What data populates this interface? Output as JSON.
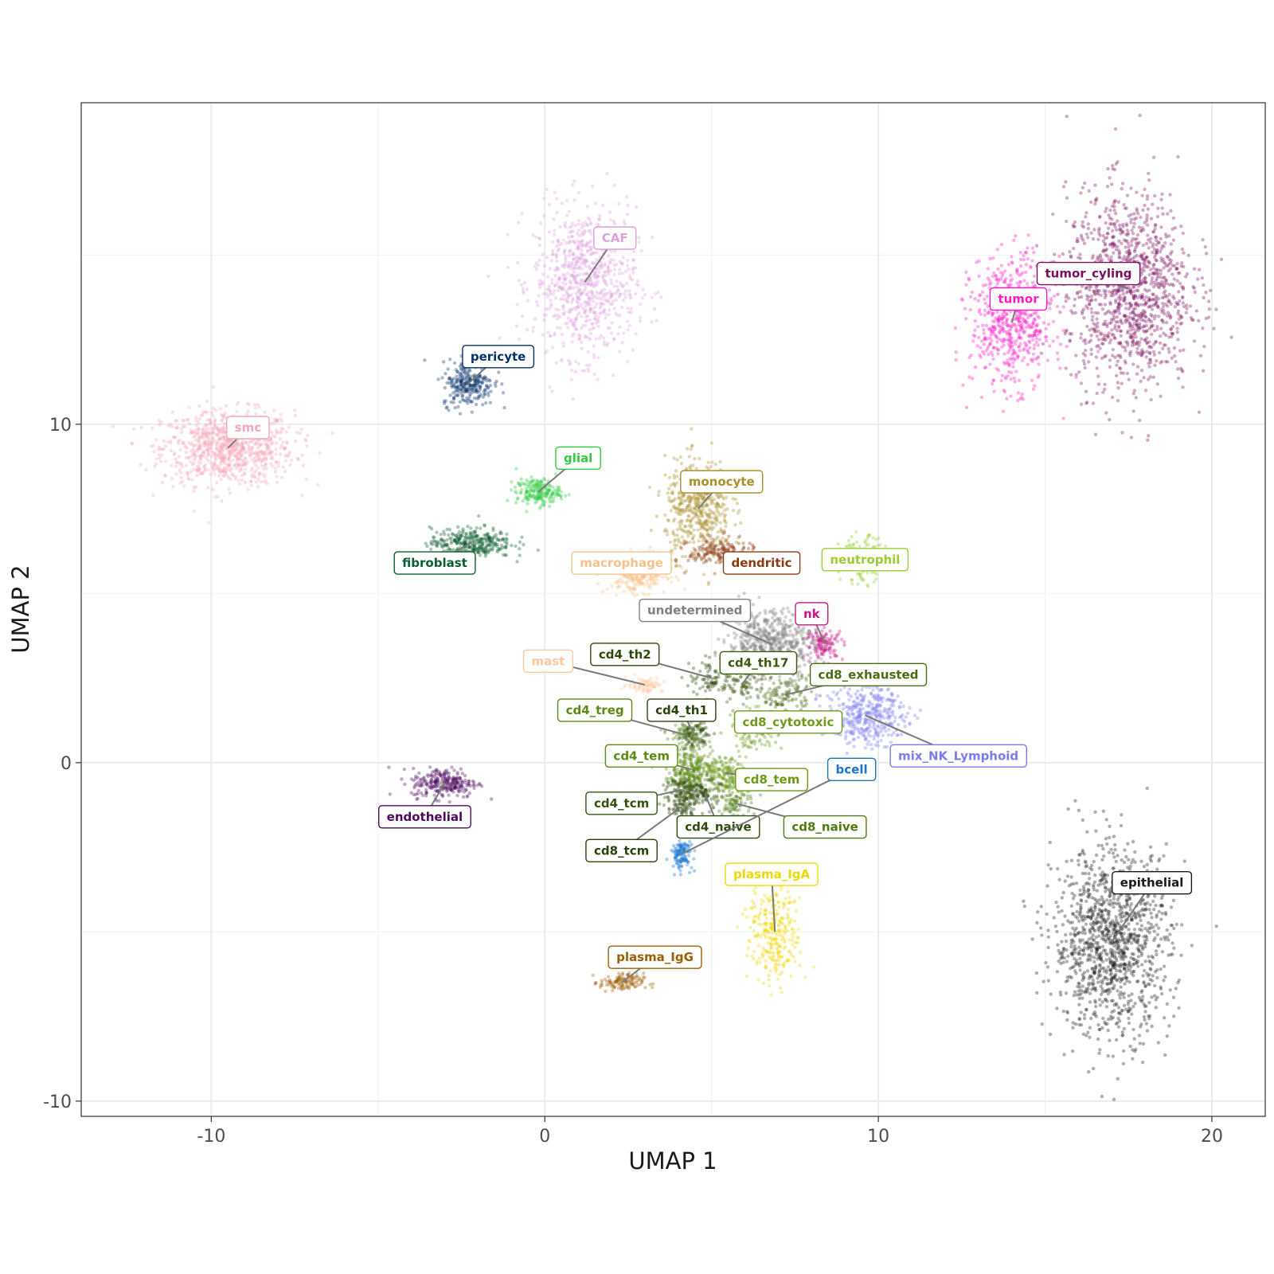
{
  "chart_data": {
    "type": "scatter",
    "title": "",
    "xlabel": "UMAP 1",
    "ylabel": "UMAP 2",
    "xlim": [
      -13.9,
      21.6
    ],
    "ylim": [
      -10.45,
      19.5
    ],
    "x_ticks": [
      -10,
      0,
      10,
      20
    ],
    "y_ticks": [
      -10,
      0,
      10
    ],
    "x_tick_labels": [
      "-10",
      "0",
      "10",
      "20"
    ],
    "y_tick_labels": [
      "-10",
      "0",
      "10"
    ],
    "grid": true,
    "legend": "none",
    "clusters": [
      {
        "label": "smc",
        "color": "#F4A7BB",
        "center": [
          -9.5,
          9.3
        ],
        "spread": [
          1.8,
          1.0
        ],
        "n": 900,
        "label_pos": [
          -8.9,
          9.9
        ]
      },
      {
        "label": "CAF",
        "color": "#DDA0DD",
        "center": [
          1.2,
          14.2
        ],
        "spread": [
          1.4,
          2.0
        ],
        "n": 800,
        "label_pos": [
          2.1,
          15.5
        ]
      },
      {
        "label": "pericyte",
        "color": "#08306B",
        "center": [
          -2.3,
          11.2
        ],
        "spread": [
          0.7,
          0.6
        ],
        "n": 260,
        "label_pos": [
          -1.4,
          12.0
        ]
      },
      {
        "label": "glial",
        "color": "#2ECC40",
        "center": [
          -0.2,
          8.0
        ],
        "spread": [
          0.6,
          0.35
        ],
        "n": 200,
        "label_pos": [
          1.0,
          9.0
        ]
      },
      {
        "label": "fibroblast",
        "color": "#0B5D2E",
        "center": [
          -2.2,
          6.5
        ],
        "spread": [
          1.1,
          0.4
        ],
        "n": 320,
        "label_pos": [
          -3.3,
          5.9
        ]
      },
      {
        "label": "monocyte",
        "color": "#A8902A",
        "center": [
          4.6,
          7.5
        ],
        "spread": [
          0.9,
          1.3
        ],
        "n": 500,
        "label_pos": [
          5.3,
          8.3
        ]
      },
      {
        "label": "macrophage",
        "color": "#F5C28E",
        "center": [
          2.8,
          5.6
        ],
        "spread": [
          0.8,
          0.5
        ],
        "n": 300,
        "label_pos": [
          2.3,
          5.9
        ]
      },
      {
        "label": "dendritic",
        "color": "#8B3A0F",
        "center": [
          5.3,
          6.2
        ],
        "spread": [
          0.9,
          0.4
        ],
        "n": 200,
        "label_pos": [
          6.5,
          5.9
        ]
      },
      {
        "label": "neutrophil",
        "color": "#9ACD32",
        "center": [
          9.5,
          6.0
        ],
        "spread": [
          0.6,
          0.6
        ],
        "n": 150,
        "label_pos": [
          9.6,
          6.0
        ]
      },
      {
        "label": "undetermined",
        "color": "#808080",
        "center": [
          6.8,
          3.5
        ],
        "spread": [
          1.2,
          0.9
        ],
        "n": 600,
        "label_pos": [
          4.5,
          4.5
        ]
      },
      {
        "label": "nk",
        "color": "#C71585",
        "center": [
          8.4,
          3.5
        ],
        "spread": [
          0.5,
          0.4
        ],
        "n": 120,
        "label_pos": [
          8.0,
          4.4
        ]
      },
      {
        "label": "mast",
        "color": "#FFC8A0",
        "center": [
          3.0,
          2.3
        ],
        "spread": [
          0.5,
          0.2
        ],
        "n": 80,
        "label_pos": [
          0.1,
          3.0
        ]
      },
      {
        "label": "cd4_th2",
        "color": "#2D4A0A",
        "center": [
          5.0,
          2.5
        ],
        "spread": [
          0.6,
          0.5
        ],
        "n": 80,
        "label_pos": [
          2.4,
          3.2
        ]
      },
      {
        "label": "cd4_th17",
        "color": "#3A5A0A",
        "center": [
          5.9,
          2.3
        ],
        "spread": [
          0.6,
          0.5
        ],
        "n": 80,
        "label_pos": [
          6.4,
          2.95
        ]
      },
      {
        "label": "cd8_exhausted",
        "color": "#4A6B12",
        "center": [
          7.2,
          2.0
        ],
        "spread": [
          0.7,
          0.5
        ],
        "n": 120,
        "label_pos": [
          9.7,
          2.6
        ]
      },
      {
        "label": "cd4_treg",
        "color": "#5C8A14",
        "center": [
          4.3,
          0.8
        ],
        "spread": [
          0.5,
          0.4
        ],
        "n": 100,
        "label_pos": [
          1.5,
          1.55
        ]
      },
      {
        "label": "cd4_th1",
        "color": "#2B4508",
        "center": [
          4.5,
          0.8
        ],
        "spread": [
          0.5,
          0.5
        ],
        "n": 80,
        "label_pos": [
          4.1,
          1.55
        ]
      },
      {
        "label": "cd8_cytotoxic",
        "color": "#6E9A1A",
        "center": [
          6.3,
          1.0
        ],
        "spread": [
          0.6,
          0.5
        ],
        "n": 160,
        "label_pos": [
          7.3,
          1.2
        ]
      },
      {
        "label": "cd4_tem",
        "color": "#5B8C10",
        "center": [
          4.4,
          -0.2
        ],
        "spread": [
          0.7,
          0.5
        ],
        "n": 240,
        "label_pos": [
          2.9,
          0.2
        ]
      },
      {
        "label": "cd8_tem",
        "color": "#6B9A14",
        "center": [
          5.4,
          -0.3
        ],
        "spread": [
          0.6,
          0.5
        ],
        "n": 180,
        "label_pos": [
          6.8,
          -0.5
        ]
      },
      {
        "label": "cd4_tcm",
        "color": "#34520C",
        "center": [
          4.1,
          -0.8
        ],
        "spread": [
          0.5,
          0.4
        ],
        "n": 120,
        "label_pos": [
          2.3,
          -1.2
        ]
      },
      {
        "label": "cd4_naive",
        "color": "#2E4A0C",
        "center": [
          4.8,
          -0.9
        ],
        "spread": [
          0.4,
          0.4
        ],
        "n": 100,
        "label_pos": [
          5.2,
          -1.9
        ]
      },
      {
        "label": "cd8_naive",
        "color": "#4E7A12",
        "center": [
          5.7,
          -1.2
        ],
        "spread": [
          0.5,
          0.5
        ],
        "n": 100,
        "label_pos": [
          8.4,
          -1.9
        ]
      },
      {
        "label": "cd8_tcm",
        "color": "#2A4208",
        "center": [
          4.1,
          -1.3
        ],
        "spread": [
          0.4,
          0.4
        ],
        "n": 80,
        "label_pos": [
          2.3,
          -2.6
        ]
      },
      {
        "label": "bcell",
        "color": "#1874CD",
        "center": [
          4.1,
          -2.7
        ],
        "spread": [
          0.3,
          0.4
        ],
        "n": 120,
        "label_pos": [
          9.2,
          -0.2
        ]
      },
      {
        "label": "mix_NK_Lymphoid",
        "color": "#7B7BF0",
        "center": [
          9.6,
          1.4
        ],
        "spread": [
          1.1,
          0.8
        ],
        "n": 400,
        "label_pos": [
          12.4,
          0.2
        ]
      },
      {
        "label": "plasma_IgA",
        "color": "#F0D800",
        "center": [
          6.9,
          -5.0
        ],
        "spread": [
          0.7,
          1.4
        ],
        "n": 300,
        "label_pos": [
          6.8,
          -3.3
        ]
      },
      {
        "label": "plasma_IgG",
        "color": "#9B5F00",
        "center": [
          2.3,
          -6.5
        ],
        "spread": [
          0.6,
          0.25
        ],
        "n": 120,
        "label_pos": [
          3.3,
          -5.75
        ]
      },
      {
        "label": "endothelial",
        "color": "#4B0A5C",
        "center": [
          -3.0,
          -0.6
        ],
        "spread": [
          0.9,
          0.4
        ],
        "n": 260,
        "label_pos": [
          -3.6,
          -1.6
        ]
      },
      {
        "label": "tumor_cyling",
        "color": "#7A0F5E",
        "center": [
          17.5,
          14.0
        ],
        "spread": [
          1.7,
          2.6
        ],
        "n": 1200,
        "label_pos": [
          16.3,
          14.45
        ]
      },
      {
        "label": "tumor",
        "color": "#FF1CC4",
        "center": [
          14.0,
          13.0
        ],
        "spread": [
          1.1,
          1.7
        ],
        "n": 600,
        "label_pos": [
          14.2,
          13.7
        ]
      },
      {
        "label": "epithelial",
        "color": "#1A1A1A",
        "center": [
          17.0,
          -5.3
        ],
        "spread": [
          1.6,
          2.5
        ],
        "n": 1200,
        "label_pos": [
          18.2,
          -3.55
        ]
      }
    ]
  }
}
